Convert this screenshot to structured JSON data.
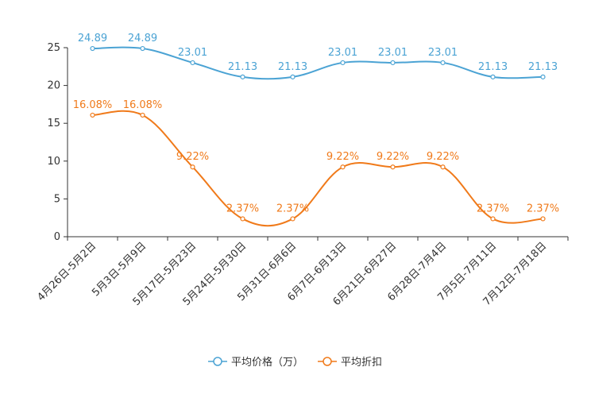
{
  "chart_data": {
    "type": "line",
    "categories": [
      "4月26日-5月2日",
      "5月3日-5月9日",
      "5月17日-5月23日",
      "5月24日-5月30日",
      "5月31日-6月6日",
      "6月7日-6月13日",
      "6月21日-6月27日",
      "6月28日-7月4日",
      "7月5日-7月11日",
      "7月12日-7月18日"
    ],
    "ylim": [
      0,
      25
    ],
    "yticks": [
      0,
      5,
      10,
      15,
      20,
      25
    ],
    "series": [
      {
        "name": "平均价格（万）",
        "color": "#4ba3d4",
        "values": [
          24.89,
          24.89,
          23.01,
          21.13,
          21.13,
          23.01,
          23.01,
          23.01,
          21.13,
          21.13
        ],
        "labels": [
          "24.89",
          "24.89",
          "23.01",
          "21.13",
          "21.13",
          "23.01",
          "23.01",
          "23.01",
          "21.13",
          "21.13"
        ]
      },
      {
        "name": "平均折扣",
        "color": "#f07a1a",
        "values": [
          16.08,
          16.08,
          9.22,
          2.37,
          2.37,
          9.22,
          9.22,
          9.22,
          2.37,
          2.37
        ],
        "labels": [
          "16.08%",
          "16.08%",
          "9.22%",
          "2.37%",
          "2.37%",
          "9.22%",
          "9.22%",
          "9.22%",
          "2.37%",
          "2.37%"
        ]
      }
    ],
    "legend_position": "bottom-center"
  }
}
